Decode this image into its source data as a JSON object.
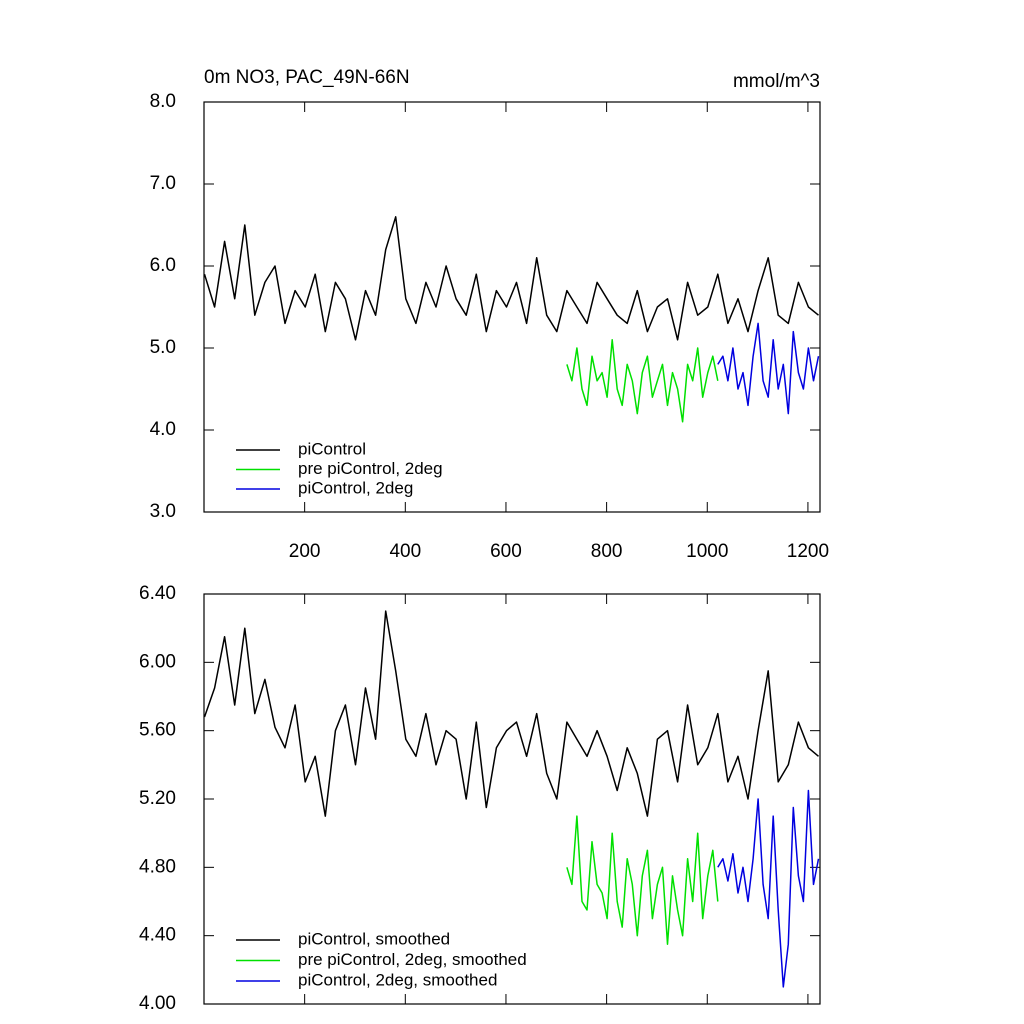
{
  "chart_data": [
    {
      "type": "line",
      "title": "0m NO3, PAC_49N-66N",
      "units": "mmol/m^3",
      "xlim": [
        0,
        1224
      ],
      "ylim": [
        3,
        8
      ],
      "xticks": [
        200,
        400,
        600,
        800,
        1000,
        1200
      ],
      "xtick_labels": true,
      "yticks": [
        {
          "value": 3,
          "label": "3.0"
        },
        {
          "value": 4,
          "label": "4.0"
        },
        {
          "value": 5,
          "label": "5.0"
        },
        {
          "value": 6,
          "label": "6.0"
        },
        {
          "value": 7,
          "label": "7.0"
        },
        {
          "value": 8,
          "label": "8.0"
        }
      ],
      "legend": "lower left",
      "series": [
        {
          "name": "piControl",
          "color": "#000000",
          "x": [
            1,
            21,
            41,
            61,
            81,
            101,
            121,
            141,
            161,
            181,
            201,
            221,
            241,
            261,
            281,
            301,
            321,
            341,
            361,
            381,
            401,
            421,
            441,
            461,
            481,
            501,
            521,
            541,
            561,
            581,
            601,
            621,
            641,
            661,
            681,
            701,
            721,
            741,
            761,
            781,
            801,
            821,
            841,
            861,
            881,
            901,
            921,
            941,
            961,
            981,
            1001,
            1021,
            1041,
            1061,
            1081,
            1101,
            1121,
            1141,
            1161,
            1181,
            1201,
            1221
          ],
          "values": [
            5.9,
            5.5,
            6.3,
            5.6,
            6.5,
            5.4,
            5.8,
            6.0,
            5.3,
            5.7,
            5.5,
            5.9,
            5.2,
            5.8,
            5.6,
            5.1,
            5.7,
            5.4,
            6.2,
            6.6,
            5.6,
            5.3,
            5.8,
            5.5,
            6.0,
            5.6,
            5.4,
            5.9,
            5.2,
            5.7,
            5.5,
            5.8,
            5.3,
            6.1,
            5.4,
            5.2,
            5.7,
            5.5,
            5.3,
            5.8,
            5.6,
            5.4,
            5.3,
            5.7,
            5.2,
            5.5,
            5.6,
            5.1,
            5.8,
            5.4,
            5.5,
            5.9,
            5.3,
            5.6,
            5.2,
            5.7,
            6.1,
            5.4,
            5.3,
            5.8,
            5.5,
            5.4
          ]
        },
        {
          "name": "pre piControl, 2deg",
          "color": "#00e000",
          "x": [
            721,
            731,
            741,
            751,
            761,
            771,
            781,
            791,
            801,
            811,
            821,
            831,
            841,
            851,
            861,
            871,
            881,
            891,
            901,
            911,
            921,
            931,
            941,
            951,
            961,
            971,
            981,
            991,
            1001,
            1011,
            1021
          ],
          "values": [
            4.8,
            4.6,
            5.0,
            4.5,
            4.3,
            4.9,
            4.6,
            4.7,
            4.4,
            5.1,
            4.5,
            4.3,
            4.8,
            4.6,
            4.2,
            4.7,
            4.9,
            4.4,
            4.6,
            4.8,
            4.3,
            4.7,
            4.5,
            4.1,
            4.8,
            4.6,
            5.0,
            4.4,
            4.7,
            4.9,
            4.6
          ]
        },
        {
          "name": "piControl, 2deg",
          "color": "#0000e0",
          "x": [
            1021,
            1031,
            1041,
            1051,
            1061,
            1071,
            1081,
            1091,
            1101,
            1111,
            1121,
            1131,
            1141,
            1151,
            1161,
            1171,
            1181,
            1191,
            1201,
            1211,
            1221
          ],
          "values": [
            4.8,
            4.9,
            4.6,
            5.0,
            4.5,
            4.7,
            4.3,
            4.9,
            5.3,
            4.6,
            4.4,
            5.1,
            4.5,
            4.8,
            4.2,
            5.2,
            4.7,
            4.5,
            5.0,
            4.6,
            4.9
          ]
        }
      ]
    },
    {
      "type": "line",
      "xlim": [
        0,
        1224
      ],
      "ylim": [
        4,
        6.4
      ],
      "xticks": [
        200,
        400,
        600,
        800,
        1000,
        1200
      ],
      "xtick_labels": false,
      "yticks": [
        {
          "value": 4,
          "label": "4.00"
        },
        {
          "value": 4.4,
          "label": "4.40"
        },
        {
          "value": 4.8,
          "label": "4.80"
        },
        {
          "value": 5.2,
          "label": "5.20"
        },
        {
          "value": 5.6,
          "label": "5.60"
        },
        {
          "value": 6,
          "label": "6.00"
        },
        {
          "value": 6.4,
          "label": "6.40"
        }
      ],
      "legend": "lower left",
      "series": [
        {
          "name": "piControl, smoothed",
          "color": "#000000",
          "x": [
            1,
            21,
            41,
            61,
            81,
            101,
            121,
            141,
            161,
            181,
            201,
            221,
            241,
            261,
            281,
            301,
            321,
            341,
            361,
            381,
            401,
            421,
            441,
            461,
            481,
            501,
            521,
            541,
            561,
            581,
            601,
            621,
            641,
            661,
            681,
            701,
            721,
            741,
            761,
            781,
            801,
            821,
            841,
            861,
            881,
            901,
            921,
            941,
            961,
            981,
            1001,
            1021,
            1041,
            1061,
            1081,
            1101,
            1121,
            1141,
            1161,
            1181,
            1201,
            1221
          ],
          "values": [
            5.68,
            5.85,
            6.15,
            5.75,
            6.2,
            5.7,
            5.9,
            5.62,
            5.5,
            5.75,
            5.3,
            5.45,
            5.1,
            5.6,
            5.75,
            5.4,
            5.85,
            5.55,
            6.3,
            5.95,
            5.55,
            5.45,
            5.7,
            5.4,
            5.6,
            5.55,
            5.2,
            5.65,
            5.15,
            5.5,
            5.6,
            5.65,
            5.45,
            5.7,
            5.35,
            5.2,
            5.65,
            5.55,
            5.45,
            5.6,
            5.45,
            5.25,
            5.5,
            5.35,
            5.1,
            5.55,
            5.6,
            5.3,
            5.75,
            5.4,
            5.5,
            5.7,
            5.3,
            5.45,
            5.2,
            5.6,
            5.95,
            5.3,
            5.4,
            5.65,
            5.5,
            5.45
          ]
        },
        {
          "name": "pre piControl, 2deg, smoothed",
          "color": "#00e000",
          "x": [
            721,
            731,
            741,
            751,
            761,
            771,
            781,
            791,
            801,
            811,
            821,
            831,
            841,
            851,
            861,
            871,
            881,
            891,
            901,
            911,
            921,
            931,
            941,
            951,
            961,
            971,
            981,
            991,
            1001,
            1011,
            1021
          ],
          "values": [
            4.8,
            4.7,
            5.1,
            4.6,
            4.55,
            4.95,
            4.7,
            4.65,
            4.5,
            5.0,
            4.6,
            4.45,
            4.85,
            4.7,
            4.4,
            4.75,
            4.9,
            4.5,
            4.7,
            4.8,
            4.35,
            4.75,
            4.55,
            4.4,
            4.85,
            4.6,
            5.0,
            4.5,
            4.75,
            4.9,
            4.6
          ]
        },
        {
          "name": "piControl, 2deg, smoothed",
          "color": "#0000e0",
          "x": [
            1021,
            1031,
            1041,
            1051,
            1061,
            1071,
            1081,
            1091,
            1101,
            1111,
            1121,
            1131,
            1141,
            1151,
            1161,
            1171,
            1181,
            1191,
            1201,
            1211,
            1221
          ],
          "values": [
            4.8,
            4.85,
            4.72,
            4.88,
            4.65,
            4.8,
            4.6,
            4.85,
            5.2,
            4.7,
            4.5,
            5.1,
            4.55,
            4.1,
            4.35,
            5.15,
            4.75,
            4.6,
            5.25,
            4.7,
            4.85
          ]
        }
      ]
    }
  ]
}
